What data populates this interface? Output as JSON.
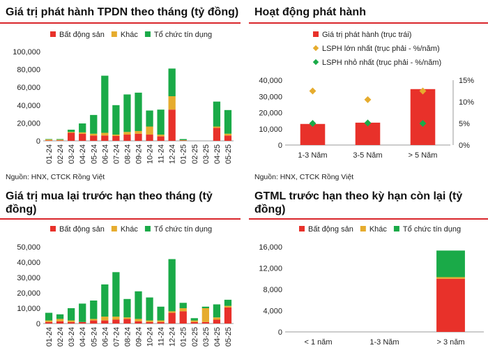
{
  "colors": {
    "bds": "#e8312a",
    "khac": "#e6ac2e",
    "tctd": "#1aaa48",
    "red_line": "#d9262b",
    "diamond_max": "#e6ac2e",
    "diamond_min": "#1aaa48"
  },
  "panels": {
    "p1": {
      "title": "Giá trị phát hành TPDN theo tháng (tỷ đồng)",
      "source": "Nguồn: HNX, CTCK Rồng Việt"
    },
    "p2": {
      "title": "Hoạt động phát hành",
      "source": "Nguồn: HNX, CTCK Rồng Việt"
    },
    "p3": {
      "title": "Giá trị mua lại trước hạn theo tháng (tỷ đồng)"
    },
    "p4": {
      "title": "GTML trước hạn theo kỳ hạn còn lại (tỷ đồng)"
    }
  },
  "chart_data": [
    {
      "id": "p1",
      "type": "bar",
      "stacked": true,
      "title": "Giá trị phát hành TPDN theo tháng (tỷ đồng)",
      "categories": [
        "01-24",
        "02-24",
        "03-24",
        "04-24",
        "05-24",
        "06-24",
        "07-24",
        "08-24",
        "09-24",
        "10-24",
        "11-24",
        "12-24",
        "01-25",
        "02-25",
        "03-25",
        "04-25",
        "05-25"
      ],
      "series": [
        {
          "name": "Bất động sản",
          "color": "#e8312a",
          "values": [
            500,
            500,
            9000,
            8000,
            6000,
            6000,
            5500,
            7000,
            8000,
            7000,
            5000,
            35000,
            500,
            0,
            0,
            14500,
            6000
          ]
        },
        {
          "name": "Khác",
          "color": "#e6ac2e",
          "values": [
            1000,
            800,
            1000,
            1500,
            2000,
            3000,
            1500,
            3000,
            3000,
            9000,
            2000,
            15000,
            300,
            0,
            0,
            1500,
            2000
          ]
        },
        {
          "name": "Tổ chức tín dụng",
          "color": "#1aaa48",
          "values": [
            500,
            700,
            2500,
            10000,
            21000,
            64000,
            33000,
            42000,
            43000,
            18000,
            28000,
            31000,
            1200,
            0,
            0,
            28000,
            26500
          ]
        }
      ],
      "ylim": [
        0,
        100000
      ],
      "yticks": [
        "0",
        "20,000",
        "40,000",
        "60,000",
        "80,000",
        "100,000"
      ],
      "ytick_values": [
        0,
        20000,
        40000,
        60000,
        80000,
        100000
      ]
    },
    {
      "id": "p2",
      "type": "bar+scatter",
      "title": "Hoạt động phát hành",
      "categories": [
        "1-3 Năm",
        "3-5 Năm",
        "> 5 Năm"
      ],
      "series": [
        {
          "name": "Giá trị phát hành (trục trái)",
          "color": "#e8312a",
          "values": [
            13000,
            13800,
            34500
          ],
          "kind": "bar",
          "axis": "left"
        },
        {
          "name": "LSPH lớn nhất (trục phải - %/năm)",
          "color": "#e6ac2e",
          "values": [
            12.5,
            10.5,
            12.5
          ],
          "kind": "diamond",
          "axis": "right"
        },
        {
          "name": "LSPH nhỏ nhất (trục phải - %/năm)",
          "color": "#1aaa48",
          "values": [
            5.0,
            5.1,
            5.0
          ],
          "kind": "diamond",
          "axis": "right"
        }
      ],
      "ylim": [
        0,
        40000
      ],
      "yticks": [
        "0",
        "10,000",
        "20,000",
        "30,000",
        "40,000"
      ],
      "ytick_values": [
        0,
        10000,
        20000,
        30000,
        40000
      ],
      "y2lim": [
        0,
        15
      ],
      "y2ticks": [
        "0%",
        "5%",
        "10%",
        "15%"
      ],
      "y2tick_values": [
        0,
        5,
        10,
        15
      ]
    },
    {
      "id": "p3",
      "type": "bar",
      "stacked": true,
      "title": "Giá trị mua lại trước hạn theo tháng (tỷ đồng)",
      "categories": [
        "01-24",
        "02-24",
        "03-24",
        "04-24",
        "05-24",
        "06-24",
        "07-24",
        "08-24",
        "09-24",
        "10-24",
        "11-24",
        "12-24",
        "01-25",
        "02-25",
        "03-25",
        "04-25",
        "05-25"
      ],
      "series": [
        {
          "name": "Bất động sản",
          "color": "#e8312a",
          "values": [
            1000,
            1500,
            1000,
            1000,
            2000,
            2000,
            2500,
            3000,
            1500,
            1000,
            1000,
            7000,
            8000,
            1000,
            1000,
            2500,
            10500
          ]
        },
        {
          "name": "Khác",
          "color": "#e6ac2e",
          "values": [
            1000,
            1500,
            1000,
            0,
            1000,
            2500,
            2000,
            1000,
            1500,
            1000,
            1000,
            1000,
            2000,
            1000,
            9000,
            1500,
            1000
          ]
        },
        {
          "name": "Tổ chức tín dụng",
          "color": "#1aaa48",
          "values": [
            5000,
            3000,
            8000,
            12000,
            12000,
            21000,
            29000,
            12000,
            18000,
            15000,
            9000,
            34000,
            3500,
            1500,
            1000,
            8500,
            4000
          ]
        }
      ],
      "ylim": [
        0,
        50000
      ],
      "yticks": [
        "0",
        "10,000",
        "20,000",
        "30,000",
        "40,000",
        "50,000"
      ],
      "ytick_values": [
        0,
        10000,
        20000,
        30000,
        40000,
        50000
      ]
    },
    {
      "id": "p4",
      "type": "bar",
      "stacked": true,
      "title": "GTML trước hạn theo kỳ hạn còn lại (tỷ đồng)",
      "categories": [
        "< 1 năm",
        "1-3 Năm",
        "> 3 năm"
      ],
      "series": [
        {
          "name": "Bất động sản",
          "color": "#e8312a",
          "values": [
            0,
            0,
            10000
          ]
        },
        {
          "name": "Khác",
          "color": "#e6ac2e",
          "values": [
            0,
            0,
            300
          ]
        },
        {
          "name": "Tổ chức tín dụng",
          "color": "#1aaa48",
          "values": [
            0,
            0,
            5000
          ]
        }
      ],
      "ylim": [
        0,
        16000
      ],
      "yticks": [
        "0",
        "4,000",
        "8,000",
        "12,000",
        "16,000"
      ],
      "ytick_values": [
        0,
        4000,
        8000,
        12000,
        16000
      ]
    }
  ]
}
